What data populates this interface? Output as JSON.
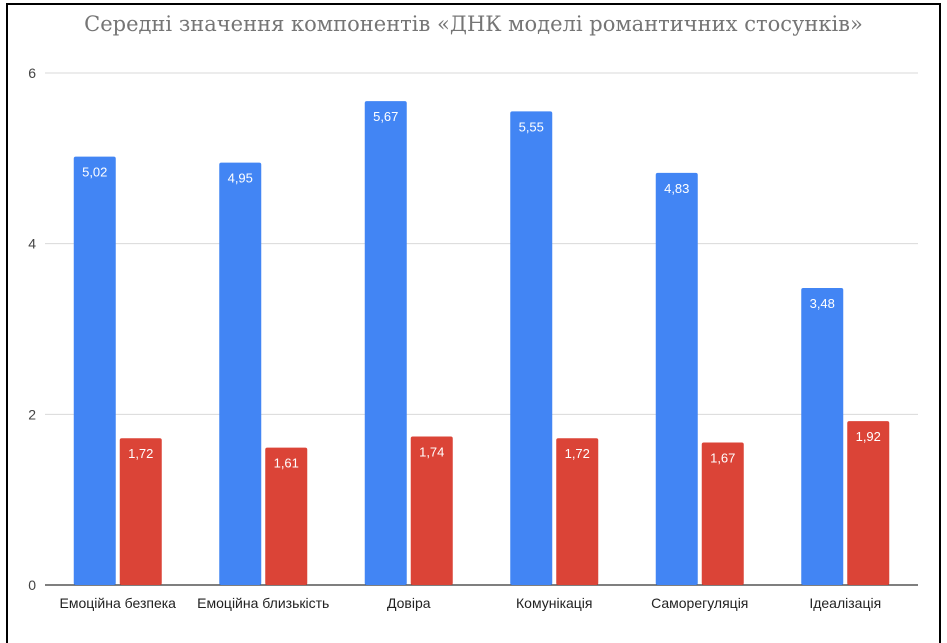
{
  "chart_data": {
    "type": "bar",
    "title": "Середні значення компонентів «ДНК моделі романтичних стосунків»",
    "categories": [
      "Емоційна безпека",
      "Емоційна близькість",
      "Довіра",
      "Комунікація",
      "Саморегуляція",
      "Ідеалізація"
    ],
    "series": [
      {
        "values": [
          5.02,
          4.95,
          5.67,
          5.55,
          4.83,
          3.48
        ],
        "labels": [
          "5,02",
          "4,95",
          "5,67",
          "5,55",
          "4,83",
          "3,48"
        ],
        "color": "#4285f4"
      },
      {
        "values": [
          1.72,
          1.61,
          1.74,
          1.72,
          1.67,
          1.92
        ],
        "labels": [
          "1,72",
          "1,61",
          "1,74",
          "1,72",
          "1,67",
          "1,92"
        ],
        "color": "#db4437"
      }
    ],
    "ylim": [
      0,
      6
    ],
    "yticks": [
      "0",
      "2",
      "4",
      "6"
    ],
    "grid": true,
    "legend": "none"
  }
}
